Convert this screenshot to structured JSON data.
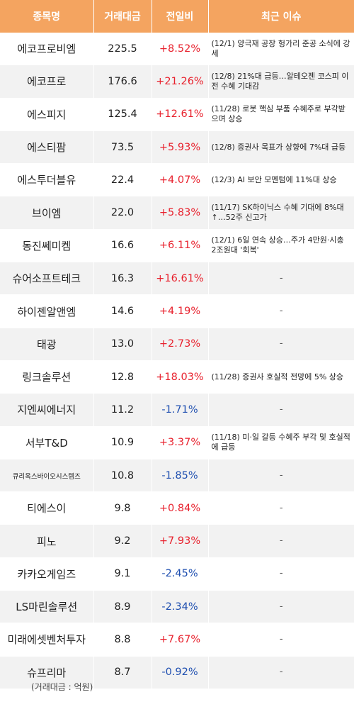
{
  "headers": [
    "종목명",
    "거래대금",
    "전일비",
    "최근 이슈"
  ],
  "rows": [
    {
      "name": "에코프로비엠",
      "volume": "225.5",
      "change": "+8.52%",
      "dir": "pos",
      "issue": "(12/1) 양극재 공장 헝가리 준공 소식에 강세"
    },
    {
      "name": "에코프로",
      "volume": "176.6",
      "change": "+21.26%",
      "dir": "pos",
      "issue": "(12/8) 21%대 급등…알테오젠 코스피 이전 수혜 기대감"
    },
    {
      "name": "에스피지",
      "volume": "125.4",
      "change": "+12.61%",
      "dir": "pos",
      "issue": "(11/28) 로봇 핵심 부품 수혜주로 부각받으며 상승"
    },
    {
      "name": "에스티팜",
      "volume": "73.5",
      "change": "+5.93%",
      "dir": "pos",
      "issue": "(12/8) 증권사 목표가 상향에 7%대 급등"
    },
    {
      "name": "에스투더블유",
      "volume": "22.4",
      "change": "+4.07%",
      "dir": "pos",
      "issue": "(12/3) AI 보안 모멘텀에 11%대 상승"
    },
    {
      "name": "브이엠",
      "volume": "22.0",
      "change": "+5.83%",
      "dir": "pos",
      "issue": "(11/17) SK하이닉스 수혜 기대에 8%대↑…52주 신고가"
    },
    {
      "name": "동진쎄미켐",
      "volume": "16.6",
      "change": "+6.11%",
      "dir": "pos",
      "issue": "(12/1) 6일 연속 상승…주가 4만원·시총 2조원대 '회복'"
    },
    {
      "name": "슈어소프트테크",
      "volume": "16.3",
      "change": "+16.61%",
      "dir": "pos",
      "issue": "-"
    },
    {
      "name": "하이젠알앤엠",
      "volume": "14.6",
      "change": "+4.19%",
      "dir": "pos",
      "issue": "-"
    },
    {
      "name": "태광",
      "volume": "13.0",
      "change": "+2.73%",
      "dir": "pos",
      "issue": "-"
    },
    {
      "name": "링크솔루션",
      "volume": "12.8",
      "change": "+18.03%",
      "dir": "pos",
      "issue": "(11/28) 증권사 호실적 전망에 5% 상승"
    },
    {
      "name": "지엔씨에너지",
      "volume": "11.2",
      "change": "-1.71%",
      "dir": "neg",
      "issue": "-"
    },
    {
      "name": "서부T&D",
      "volume": "10.9",
      "change": "+3.37%",
      "dir": "pos",
      "issue": "(11/18) 미·일 갈등 수혜주 부각 및 호실적에 급등"
    },
    {
      "name": "큐리옥스바이오시스템즈",
      "volume": "10.8",
      "change": "-1.85%",
      "dir": "neg",
      "issue": "-"
    },
    {
      "name": "티에스이",
      "volume": "9.8",
      "change": "+0.84%",
      "dir": "pos",
      "issue": "-"
    },
    {
      "name": "피노",
      "volume": "9.2",
      "change": "+7.93%",
      "dir": "pos",
      "issue": "-"
    },
    {
      "name": "카카오게임즈",
      "volume": "9.1",
      "change": "-2.45%",
      "dir": "neg",
      "issue": "-"
    },
    {
      "name": "LS마린솔루션",
      "volume": "8.9",
      "change": "-2.34%",
      "dir": "neg",
      "issue": "-"
    },
    {
      "name": "미래에셋벤처투자",
      "volume": "8.8",
      "change": "+7.67%",
      "dir": "pos",
      "issue": "-"
    },
    {
      "name": "슈프리마",
      "volume": "8.7",
      "change": "-0.92%",
      "dir": "neg",
      "issue": "-"
    }
  ],
  "footnote": "(거래대금 : 억원)"
}
